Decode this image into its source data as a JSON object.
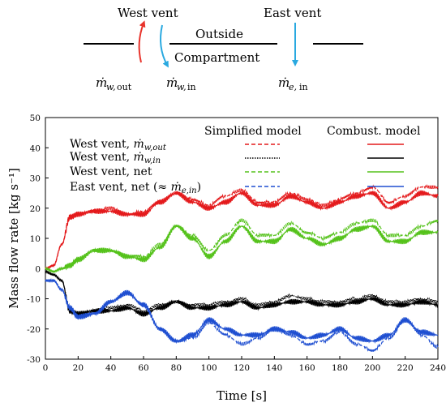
{
  "diagram": {
    "west_vent_label": "West vent",
    "east_vent_label": "East vent",
    "outside_label": "Outside",
    "compartment_label": "Compartment",
    "flow_labels": [
      {
        "symbol": "ṁ",
        "sub_pre": "w,",
        "sub_post": "out"
      },
      {
        "symbol": "ṁ",
        "sub_pre": "w,",
        "sub_post": "in"
      },
      {
        "symbol": "ṁ",
        "sub_pre": "e,",
        "sub_post": "in"
      }
    ],
    "colors": {
      "out_arrow": "#e8342c",
      "in_arrow": "#2aa9e0"
    }
  },
  "legend": {
    "col_headers": [
      "Simplified model",
      "Combust. model"
    ],
    "entries": [
      {
        "text": "West vent, ",
        "math": "ṁ",
        "sub": "w,out",
        "color": "#e41a1c"
      },
      {
        "text": "West vent, ",
        "math": "ṁ",
        "sub": "w,in",
        "color": "#000000"
      },
      {
        "text": "West vent, net",
        "math": "",
        "sub": "",
        "color": "#55c21b"
      },
      {
        "text": "East vent, net (≈ ",
        "math": "ṁ",
        "sub": "e,in",
        "tail": ")",
        "color": "#1f4fd1"
      }
    ]
  },
  "chart_data": {
    "type": "line",
    "xlabel": "Time [s]",
    "ylabel": "Mass flow rate [kg s⁻¹]",
    "xlim": [
      0,
      240
    ],
    "ylim": [
      -30,
      50
    ],
    "xticks": [
      0,
      20,
      40,
      60,
      80,
      100,
      120,
      140,
      160,
      180,
      200,
      220,
      240
    ],
    "yticks": [
      -30,
      -20,
      -10,
      0,
      10,
      20,
      30,
      40,
      50
    ],
    "grid": false,
    "legend_position": "top",
    "series": [
      {
        "name": "West vent, ṁw,out (Combust. model)",
        "style": "solid",
        "color": "#e41a1c",
        "x": [
          0,
          5,
          10,
          15,
          20,
          30,
          40,
          50,
          60,
          70,
          80,
          90,
          100,
          110,
          120,
          130,
          140,
          150,
          160,
          170,
          180,
          190,
          200,
          210,
          220,
          230,
          240
        ],
        "y": [
          0,
          1,
          8,
          17,
          18,
          19,
          19,
          18,
          18,
          22,
          25,
          22,
          20,
          22,
          25,
          21,
          21,
          24,
          22,
          20,
          22,
          24,
          25,
          20,
          22,
          25,
          24
        ]
      },
      {
        "name": "West vent, ṁw,out (Simplified model)",
        "style": "dashed",
        "color": "#e41a1c",
        "x": [
          0,
          5,
          10,
          15,
          20,
          30,
          40,
          50,
          60,
          70,
          80,
          90,
          100,
          110,
          120,
          130,
          140,
          150,
          160,
          170,
          180,
          190,
          200,
          210,
          220,
          230,
          240
        ],
        "y": [
          0,
          1,
          8,
          17,
          18,
          19,
          20,
          18,
          19,
          22,
          25,
          23,
          21,
          24,
          26,
          22,
          22,
          25,
          23,
          21,
          23,
          25,
          27,
          22,
          24,
          27,
          27
        ]
      },
      {
        "name": "West vent, ṁw,in (Combust. model)",
        "style": "solid",
        "color": "#000000",
        "x": [
          0,
          5,
          10,
          15,
          20,
          30,
          40,
          50,
          60,
          70,
          80,
          90,
          100,
          110,
          120,
          130,
          140,
          150,
          160,
          170,
          180,
          190,
          200,
          210,
          220,
          230,
          240
        ],
        "y": [
          -1,
          -2,
          -4,
          -14,
          -15,
          -14,
          -14,
          -13,
          -15,
          -13,
          -11,
          -13,
          -13,
          -12,
          -11,
          -13,
          -12,
          -11,
          -11,
          -12,
          -12,
          -11,
          -10,
          -12,
          -12,
          -11,
          -12
        ]
      },
      {
        "name": "West vent, ṁw,in (Simplified model)",
        "style": "dotted",
        "color": "#000000",
        "x": [
          0,
          5,
          10,
          15,
          20,
          30,
          40,
          50,
          60,
          70,
          80,
          90,
          100,
          110,
          120,
          130,
          140,
          150,
          160,
          170,
          180,
          190,
          200,
          210,
          220,
          230,
          240
        ],
        "y": [
          -1,
          -2,
          -4,
          -14,
          -15,
          -14,
          -13,
          -12,
          -14,
          -12,
          -11,
          -12,
          -12,
          -11,
          -10,
          -12,
          -11,
          -9,
          -10,
          -11,
          -11,
          -10,
          -9,
          -11,
          -11,
          -10,
          -11
        ]
      },
      {
        "name": "West vent, net (Combust. model)",
        "style": "solid",
        "color": "#55c21b",
        "x": [
          0,
          5,
          10,
          15,
          20,
          30,
          40,
          50,
          60,
          70,
          80,
          90,
          100,
          110,
          120,
          130,
          140,
          150,
          160,
          170,
          180,
          190,
          200,
          210,
          220,
          230,
          240
        ],
        "y": [
          0,
          -1,
          0,
          1,
          3,
          6,
          6,
          4,
          3,
          7,
          14,
          10,
          4,
          9,
          14,
          9,
          9,
          13,
          10,
          8,
          10,
          13,
          14,
          9,
          9,
          12,
          12
        ]
      },
      {
        "name": "West vent, net (Simplified model)",
        "style": "dashed",
        "color": "#55c21b",
        "x": [
          0,
          5,
          10,
          15,
          20,
          30,
          40,
          50,
          60,
          70,
          80,
          90,
          100,
          110,
          120,
          130,
          140,
          150,
          160,
          170,
          180,
          190,
          200,
          210,
          220,
          230,
          240
        ],
        "y": [
          0,
          -1,
          0,
          1,
          3,
          6,
          6,
          4,
          4,
          8,
          14,
          11,
          6,
          11,
          16,
          11,
          11,
          15,
          12,
          10,
          12,
          15,
          16,
          11,
          11,
          14,
          16
        ]
      },
      {
        "name": "East vent, net (Combust. model)",
        "style": "solid",
        "color": "#1f4fd1",
        "x": [
          0,
          5,
          10,
          15,
          20,
          30,
          40,
          50,
          60,
          70,
          80,
          90,
          100,
          110,
          120,
          130,
          140,
          150,
          160,
          170,
          180,
          190,
          200,
          210,
          220,
          230,
          240
        ],
        "y": [
          -4,
          -4,
          -7,
          -13,
          -16,
          -15,
          -11,
          -8,
          -12,
          -20,
          -24,
          -22,
          -17,
          -20,
          -22,
          -22,
          -20,
          -21,
          -23,
          -22,
          -20,
          -23,
          -24,
          -22,
          -17,
          -21,
          -22
        ]
      },
      {
        "name": "East vent, net (Simplified model)",
        "style": "dashed",
        "color": "#1f4fd1",
        "x": [
          0,
          5,
          10,
          15,
          20,
          30,
          40,
          50,
          60,
          70,
          80,
          90,
          100,
          110,
          120,
          130,
          140,
          150,
          160,
          170,
          180,
          190,
          200,
          210,
          220,
          230,
          240
        ],
        "y": [
          -4,
          -4,
          -7,
          -13,
          -16,
          -15,
          -11,
          -8,
          -12,
          -20,
          -24,
          -23,
          -18,
          -22,
          -25,
          -23,
          -20,
          -22,
          -25,
          -24,
          -21,
          -25,
          -27,
          -23,
          -17,
          -22,
          -26
        ]
      }
    ]
  }
}
